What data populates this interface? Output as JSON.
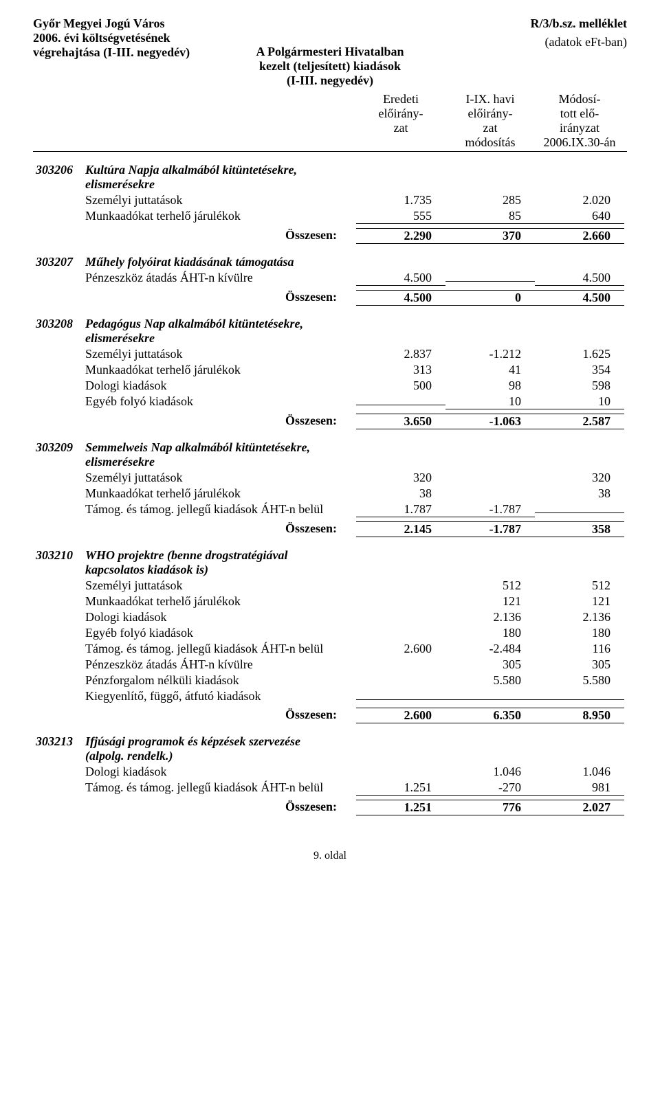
{
  "header": {
    "left_line1": "Győr Megyei Jogú Város",
    "left_line2": "2006. évi költségvetésének",
    "left_line3": "végrehajtása (I-III. negyedév)",
    "right_line1": "R/3/b.sz. melléklet",
    "right_line2": "(adatok eFt-ban)",
    "center_line1": "A Polgármesteri Hivatalban",
    "center_line2": "kezelt (teljesített) kiadások",
    "center_line3": "(I-III. negyedév)"
  },
  "col_headers": {
    "c1a": "Eredeti",
    "c1b": "előirány-",
    "c1c": "zat",
    "c2a": "I-IX. havi",
    "c2b": "előirány-",
    "c2c": "zat",
    "c2d": "módosítás",
    "c3a": "Módosí-",
    "c3b": "tott elő-",
    "c3c": "irányzat",
    "c3d": "2006.IX.30-án"
  },
  "labels": {
    "osszesen": "Összesen:",
    "szemelyi": "Személyi juttatások",
    "munkaado": "Munkaadókat terhelő járulékok",
    "dologi": "Dologi kiadások",
    "egyebfolyo": "Egyéb folyó kiadások",
    "tamog_belul": "Támog. és támog. jellegű kiadások ÁHT-n belül",
    "penzeszk_kivul": "Pénzeszköz átadás ÁHT-n kívülre",
    "penzforgalom": "Pénzforgalom nélküli kiadások",
    "kiegyenlito": "Kiegyenlítő, függő, átfutó kiadások"
  },
  "sections": {
    "s303206": {
      "code": "303206",
      "title1": "Kultúra Napja alkalmából kitüntetésekre,",
      "title2": "elismerésekre",
      "rows": [
        {
          "label_key": "szemelyi",
          "v": [
            "1.735",
            "285",
            "2.020"
          ]
        },
        {
          "label_key": "munkaado",
          "v": [
            "555",
            "85",
            "640"
          ]
        }
      ],
      "total": [
        "2.290",
        "370",
        "2.660"
      ]
    },
    "s303207": {
      "code": "303207",
      "title1": "Műhely folyóirat kiadásának támogatása",
      "rows": [
        {
          "label_key": "penzeszk_kivul",
          "v": [
            "4.500",
            "",
            "4.500"
          ]
        }
      ],
      "total": [
        "4.500",
        "0",
        "4.500"
      ]
    },
    "s303208": {
      "code": "303208",
      "title1": "Pedagógus Nap alkalmából kitüntetésekre,",
      "title2": "elismerésekre",
      "rows": [
        {
          "label_key": "szemelyi",
          "v": [
            "2.837",
            "-1.212",
            "1.625"
          ]
        },
        {
          "label_key": "munkaado",
          "v": [
            "313",
            "41",
            "354"
          ]
        },
        {
          "label_key": "dologi",
          "v": [
            "500",
            "98",
            "598"
          ]
        },
        {
          "label_key": "egyebfolyo",
          "v": [
            "",
            "10",
            "10"
          ]
        }
      ],
      "total": [
        "3.650",
        "-1.063",
        "2.587"
      ]
    },
    "s303209": {
      "code": "303209",
      "title1": "Semmelweis Nap alkalmából kitüntetésekre,",
      "title2": "elismerésekre",
      "rows": [
        {
          "label_key": "szemelyi",
          "v": [
            "320",
            "",
            "320"
          ]
        },
        {
          "label_key": "munkaado",
          "v": [
            "38",
            "",
            "38"
          ]
        },
        {
          "label_key": "tamog_belul",
          "v": [
            "1.787",
            "-1.787",
            ""
          ]
        }
      ],
      "total": [
        "2.145",
        "-1.787",
        "358"
      ]
    },
    "s303210": {
      "code": "303210",
      "title1": "WHO projektre (benne drogstratégiával",
      "title2": "kapcsolatos kiadások is)",
      "rows": [
        {
          "label_key": "szemelyi",
          "v": [
            "",
            "512",
            "512"
          ]
        },
        {
          "label_key": "munkaado",
          "v": [
            "",
            "121",
            "121"
          ]
        },
        {
          "label_key": "dologi",
          "v": [
            "",
            "2.136",
            "2.136"
          ]
        },
        {
          "label_key": "egyebfolyo",
          "v": [
            "",
            "180",
            "180"
          ]
        },
        {
          "label_key": "tamog_belul",
          "v": [
            "2.600",
            "-2.484",
            "116"
          ]
        },
        {
          "label_key": "penzeszk_kivul",
          "v": [
            "",
            "305",
            "305"
          ]
        },
        {
          "label_key": "penzforgalom",
          "v": [
            "",
            "5.580",
            "5.580"
          ]
        },
        {
          "label_key": "kiegyenlito",
          "v": [
            "",
            "",
            ""
          ]
        }
      ],
      "total": [
        "2.600",
        "6.350",
        "8.950"
      ]
    },
    "s303213": {
      "code": "303213",
      "title1": "Ifjúsági programok és képzések szervezése",
      "title2": "(alpolg. rendelk.)",
      "rows": [
        {
          "label_key": "dologi",
          "v": [
            "",
            "1.046",
            "1.046"
          ]
        },
        {
          "label_key": "tamog_belul",
          "v": [
            "1.251",
            "-270",
            "981"
          ]
        }
      ],
      "total": [
        "1.251",
        "776",
        "2.027"
      ]
    }
  },
  "footer": "9. oldal"
}
